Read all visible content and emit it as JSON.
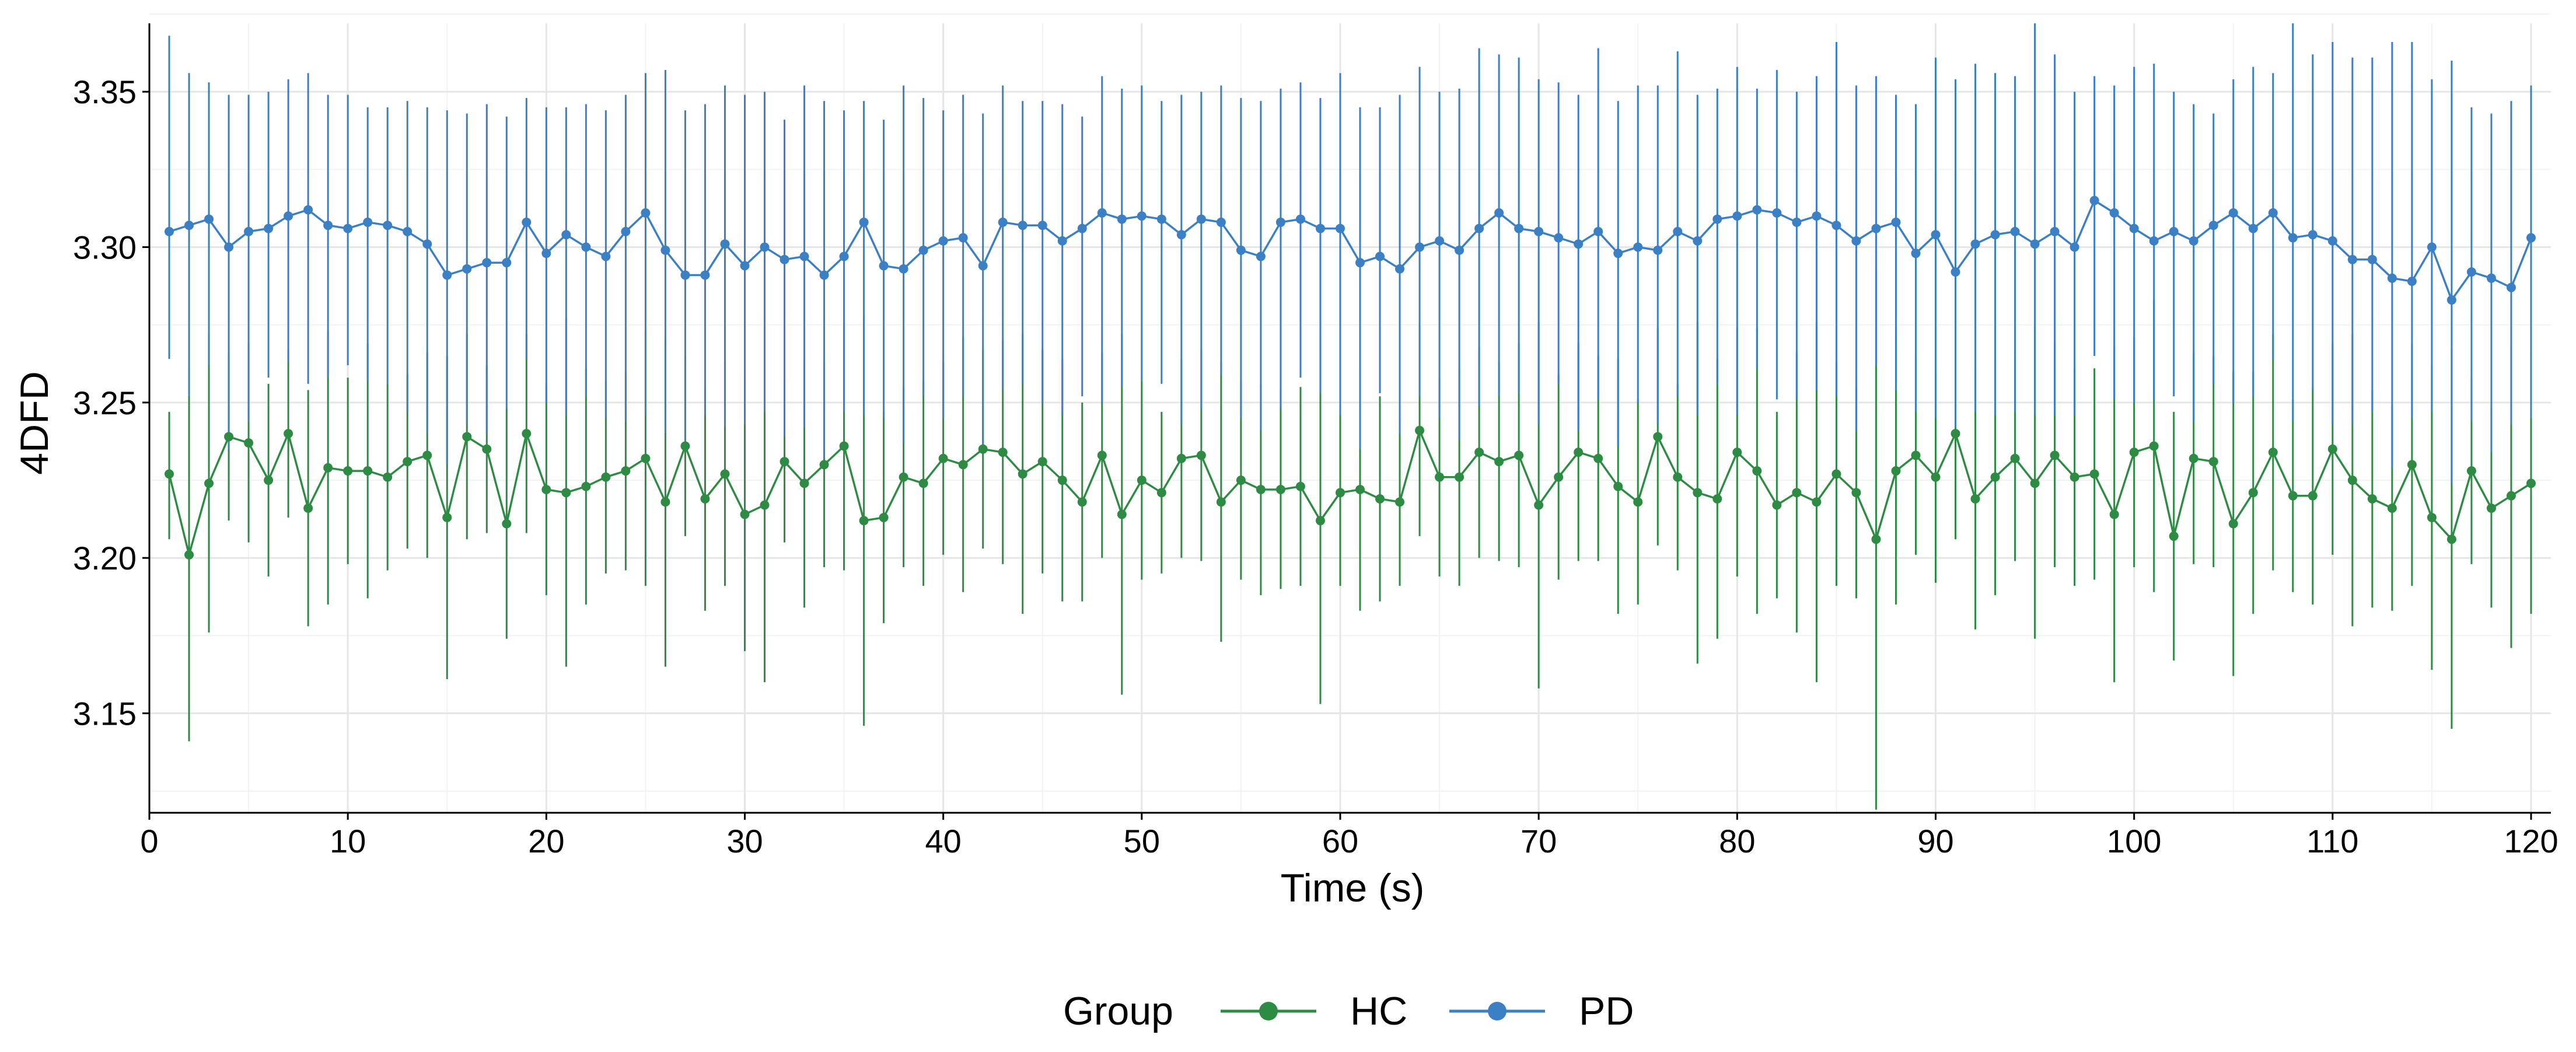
{
  "chart_data": {
    "type": "line",
    "title": "",
    "xlabel": "Time (s)",
    "ylabel": "4DFD",
    "xlim": [
      0,
      121
    ],
    "ylim": [
      3.118,
      3.372
    ],
    "x_ticks": [
      0,
      10,
      20,
      30,
      40,
      50,
      60,
      70,
      80,
      90,
      100,
      110,
      120
    ],
    "x_tick_labels": [
      "0",
      "10",
      "20",
      "30",
      "40",
      "50",
      "60",
      "70",
      "80",
      "90",
      "100",
      "110",
      "120"
    ],
    "y_ticks": [
      3.15,
      3.2,
      3.25,
      3.3,
      3.35
    ],
    "y_tick_labels": [
      "3.15",
      "3.20",
      "3.25",
      "3.30",
      "3.35"
    ],
    "grid": true,
    "error_bars": true,
    "x": [
      1,
      2,
      3,
      4,
      5,
      6,
      7,
      8,
      9,
      10,
      11,
      12,
      13,
      14,
      15,
      16,
      17,
      18,
      19,
      20,
      21,
      22,
      23,
      24,
      25,
      26,
      27,
      28,
      29,
      30,
      31,
      32,
      33,
      34,
      35,
      36,
      37,
      38,
      39,
      40,
      41,
      42,
      43,
      44,
      45,
      46,
      47,
      48,
      49,
      50,
      51,
      52,
      53,
      54,
      55,
      56,
      57,
      58,
      59,
      60,
      61,
      62,
      63,
      64,
      65,
      66,
      67,
      68,
      69,
      70,
      71,
      72,
      73,
      74,
      75,
      76,
      77,
      78,
      79,
      80,
      81,
      82,
      83,
      84,
      85,
      86,
      87,
      88,
      89,
      90,
      91,
      92,
      93,
      94,
      95,
      96,
      97,
      98,
      99,
      100,
      101,
      102,
      103,
      104,
      105,
      106,
      107,
      108,
      109,
      110,
      111,
      112,
      113,
      114,
      115,
      116,
      117,
      118,
      119,
      120
    ],
    "legend": {
      "title": "Group",
      "position": "bottom",
      "entries": [
        "HC",
        "PD"
      ]
    },
    "series": [
      {
        "name": "HC",
        "color": "#2e8b44",
        "values": [
          3.227,
          3.201,
          3.224,
          3.239,
          3.237,
          3.225,
          3.24,
          3.216,
          3.229,
          3.228,
          3.228,
          3.226,
          3.231,
          3.233,
          3.213,
          3.239,
          3.235,
          3.211,
          3.24,
          3.222,
          3.221,
          3.223,
          3.226,
          3.228,
          3.232,
          3.218,
          3.236,
          3.219,
          3.227,
          3.214,
          3.217,
          3.231,
          3.224,
          3.23,
          3.236,
          3.212,
          3.213,
          3.226,
          3.224,
          3.232,
          3.23,
          3.235,
          3.234,
          3.227,
          3.231,
          3.225,
          3.218,
          3.233,
          3.214,
          3.225,
          3.221,
          3.232,
          3.233,
          3.218,
          3.225,
          3.222,
          3.222,
          3.223,
          3.212,
          3.221,
          3.222,
          3.219,
          3.218,
          3.241,
          3.226,
          3.226,
          3.234,
          3.231,
          3.233,
          3.217,
          3.226,
          3.234,
          3.232,
          3.223,
          3.218,
          3.239,
          3.226,
          3.221,
          3.219,
          3.234,
          3.228,
          3.217,
          3.221,
          3.218,
          3.227,
          3.221,
          3.206,
          3.228,
          3.233,
          3.226,
          3.24,
          3.219,
          3.226,
          3.232,
          3.224,
          3.233,
          3.226,
          3.227,
          3.214,
          3.234,
          3.236,
          3.207,
          3.232,
          3.231,
          3.211,
          3.221,
          3.234,
          3.22,
          3.22,
          3.235,
          3.225,
          3.219,
          3.216,
          3.23,
          3.213,
          3.206,
          3.228,
          3.216,
          3.22,
          3.224
        ],
        "err_low": [
          3.206,
          3.141,
          3.176,
          3.212,
          3.205,
          3.194,
          3.213,
          3.178,
          3.185,
          3.198,
          3.187,
          3.196,
          3.203,
          3.2,
          3.161,
          3.206,
          3.208,
          3.174,
          3.208,
          3.188,
          3.165,
          3.185,
          3.195,
          3.196,
          3.191,
          3.165,
          3.207,
          3.183,
          3.191,
          3.17,
          3.16,
          3.205,
          3.184,
          3.197,
          3.196,
          3.146,
          3.179,
          3.197,
          3.191,
          3.201,
          3.189,
          3.203,
          3.198,
          3.182,
          3.195,
          3.186,
          3.186,
          3.2,
          3.156,
          3.193,
          3.195,
          3.2,
          3.199,
          3.173,
          3.193,
          3.188,
          3.19,
          3.191,
          3.153,
          3.191,
          3.183,
          3.186,
          3.191,
          3.207,
          3.194,
          3.191,
          3.2,
          3.199,
          3.197,
          3.158,
          3.193,
          3.199,
          3.199,
          3.182,
          3.185,
          3.204,
          3.196,
          3.166,
          3.174,
          3.194,
          3.182,
          3.187,
          3.176,
          3.16,
          3.191,
          3.187,
          3.119,
          3.185,
          3.201,
          3.192,
          3.206,
          3.177,
          3.188,
          3.199,
          3.174,
          3.197,
          3.191,
          3.193,
          3.16,
          3.197,
          3.189,
          3.167,
          3.198,
          3.197,
          3.162,
          3.182,
          3.196,
          3.189,
          3.185,
          3.201,
          3.178,
          3.184,
          3.183,
          3.191,
          3.164,
          3.145,
          3.198,
          3.184,
          3.171,
          3.182
        ],
        "err_high": [
          3.247,
          3.261,
          3.272,
          3.266,
          3.269,
          3.256,
          3.267,
          3.254,
          3.273,
          3.258,
          3.269,
          3.256,
          3.259,
          3.266,
          3.265,
          3.272,
          3.262,
          3.248,
          3.272,
          3.256,
          3.277,
          3.261,
          3.257,
          3.26,
          3.273,
          3.271,
          3.265,
          3.255,
          3.263,
          3.258,
          3.274,
          3.257,
          3.264,
          3.263,
          3.276,
          3.278,
          3.247,
          3.255,
          3.257,
          3.263,
          3.271,
          3.267,
          3.27,
          3.272,
          3.267,
          3.264,
          3.25,
          3.266,
          3.272,
          3.257,
          3.247,
          3.264,
          3.267,
          3.263,
          3.257,
          3.256,
          3.254,
          3.255,
          3.271,
          3.251,
          3.261,
          3.252,
          3.245,
          3.275,
          3.258,
          3.261,
          3.268,
          3.263,
          3.269,
          3.276,
          3.259,
          3.269,
          3.265,
          3.264,
          3.251,
          3.274,
          3.256,
          3.276,
          3.264,
          3.274,
          3.274,
          3.247,
          3.266,
          3.276,
          3.263,
          3.255,
          3.293,
          3.271,
          3.265,
          3.26,
          3.274,
          3.261,
          3.264,
          3.265,
          3.274,
          3.269,
          3.261,
          3.261,
          3.268,
          3.271,
          3.283,
          3.247,
          3.266,
          3.265,
          3.26,
          3.26,
          3.272,
          3.251,
          3.255,
          3.269,
          3.272,
          3.254,
          3.249,
          3.269,
          3.262,
          3.267,
          3.258,
          3.248,
          3.269,
          3.266
        ]
      },
      {
        "name": "PD",
        "color": "#3b7fc4",
        "values": [
          3.305,
          3.307,
          3.309,
          3.3,
          3.305,
          3.306,
          3.31,
          3.312,
          3.307,
          3.306,
          3.308,
          3.307,
          3.305,
          3.301,
          3.291,
          3.293,
          3.295,
          3.295,
          3.308,
          3.298,
          3.304,
          3.3,
          3.297,
          3.305,
          3.311,
          3.299,
          3.291,
          3.291,
          3.301,
          3.294,
          3.3,
          3.296,
          3.297,
          3.291,
          3.297,
          3.308,
          3.294,
          3.293,
          3.299,
          3.302,
          3.303,
          3.294,
          3.308,
          3.307,
          3.307,
          3.302,
          3.306,
          3.311,
          3.309,
          3.31,
          3.309,
          3.304,
          3.309,
          3.308,
          3.299,
          3.297,
          3.308,
          3.309,
          3.306,
          3.306,
          3.295,
          3.297,
          3.293,
          3.3,
          3.302,
          3.299,
          3.306,
          3.311,
          3.306,
          3.305,
          3.303,
          3.301,
          3.305,
          3.298,
          3.3,
          3.299,
          3.305,
          3.302,
          3.309,
          3.31,
          3.312,
          3.311,
          3.308,
          3.31,
          3.307,
          3.302,
          3.306,
          3.308,
          3.298,
          3.304,
          3.292,
          3.301,
          3.304,
          3.305,
          3.301,
          3.305,
          3.3,
          3.315,
          3.311,
          3.306,
          3.302,
          3.305,
          3.302,
          3.307,
          3.311,
          3.306,
          3.311,
          3.303,
          3.304,
          3.302,
          3.296,
          3.296,
          3.29,
          3.289,
          3.3,
          3.283,
          3.292,
          3.29,
          3.287,
          3.303
        ],
        "err_low": [
          3.264,
          3.252,
          3.262,
          3.235,
          3.244,
          3.258,
          3.263,
          3.256,
          3.258,
          3.262,
          3.257,
          3.256,
          3.247,
          3.24,
          3.23,
          3.243,
          3.24,
          3.248,
          3.264,
          3.25,
          3.246,
          3.252,
          3.245,
          3.244,
          3.246,
          3.24,
          3.236,
          3.246,
          3.242,
          3.243,
          3.247,
          3.239,
          3.242,
          3.232,
          3.247,
          3.246,
          3.245,
          3.237,
          3.252,
          3.245,
          3.252,
          3.236,
          3.254,
          3.256,
          3.25,
          3.246,
          3.252,
          3.25,
          3.255,
          3.257,
          3.256,
          3.243,
          3.248,
          3.259,
          3.245,
          3.241,
          3.248,
          3.258,
          3.253,
          3.246,
          3.235,
          3.253,
          3.24,
          3.252,
          3.245,
          3.238,
          3.249,
          3.252,
          3.253,
          3.243,
          3.256,
          3.241,
          3.251,
          3.236,
          3.25,
          3.243,
          3.252,
          3.246,
          3.256,
          3.246,
          3.261,
          3.251,
          3.251,
          3.254,
          3.252,
          3.241,
          3.262,
          3.254,
          3.247,
          3.245,
          3.242,
          3.247,
          3.246,
          3.247,
          3.246,
          3.246,
          3.246,
          3.265,
          3.251,
          3.25,
          3.251,
          3.252,
          3.244,
          3.256,
          3.25,
          3.252,
          3.264,
          3.244,
          3.254,
          3.243,
          3.243,
          3.247,
          3.229,
          3.245,
          3.247,
          3.224,
          3.244,
          3.234,
          3.243,
          3.245
        ],
        "err_high": [
          3.368,
          3.356,
          3.353,
          3.349,
          3.349,
          3.35,
          3.354,
          3.356,
          3.349,
          3.349,
          3.345,
          3.345,
          3.347,
          3.345,
          3.344,
          3.343,
          3.346,
          3.342,
          3.348,
          3.345,
          3.345,
          3.346,
          3.344,
          3.349,
          3.356,
          3.357,
          3.344,
          3.346,
          3.352,
          3.349,
          3.35,
          3.341,
          3.352,
          3.347,
          3.344,
          3.347,
          3.341,
          3.352,
          3.348,
          3.344,
          3.349,
          3.343,
          3.352,
          3.347,
          3.347,
          3.346,
          3.342,
          3.355,
          3.351,
          3.352,
          3.347,
          3.349,
          3.35,
          3.352,
          3.348,
          3.347,
          3.351,
          3.353,
          3.348,
          3.356,
          3.345,
          3.345,
          3.349,
          3.358,
          3.35,
          3.351,
          3.364,
          3.362,
          3.361,
          3.354,
          3.353,
          3.349,
          3.364,
          3.347,
          3.352,
          3.352,
          3.363,
          3.349,
          3.351,
          3.358,
          3.351,
          3.357,
          3.35,
          3.355,
          3.366,
          3.352,
          3.355,
          3.349,
          3.346,
          3.361,
          3.354,
          3.359,
          3.356,
          3.355,
          3.372,
          3.362,
          3.35,
          3.355,
          3.352,
          3.358,
          3.359,
          3.35,
          3.346,
          3.343,
          3.354,
          3.358,
          3.356,
          3.372,
          3.362,
          3.366,
          3.361,
          3.361,
          3.366,
          3.366,
          3.354,
          3.36,
          3.345,
          3.343,
          3.347,
          3.352
        ]
      }
    ]
  }
}
